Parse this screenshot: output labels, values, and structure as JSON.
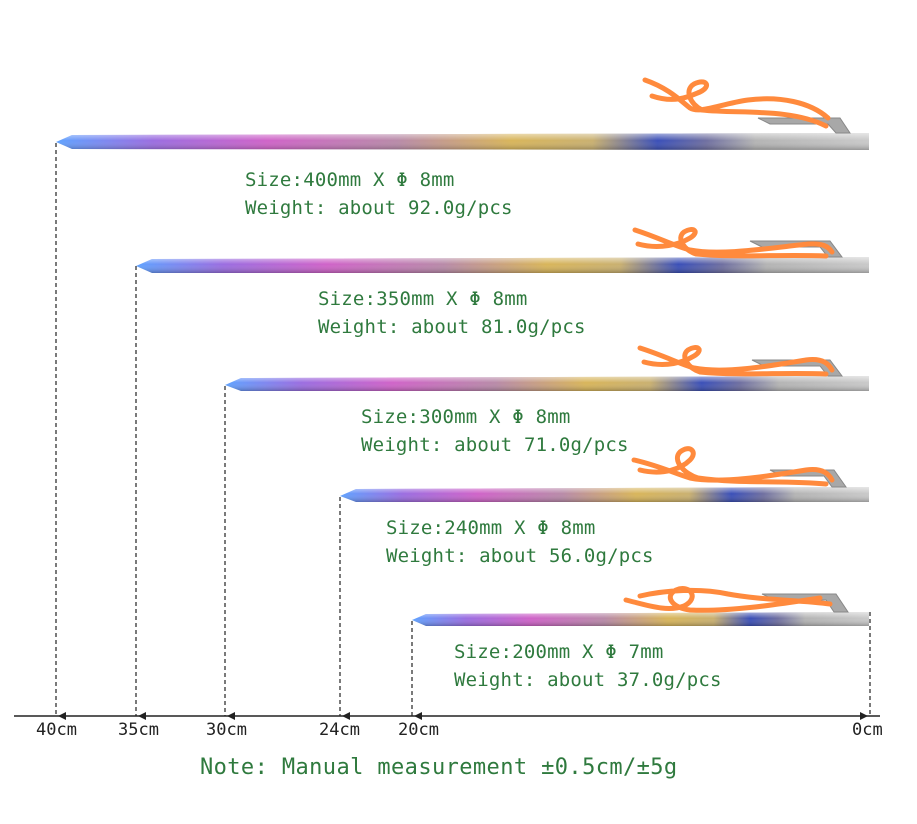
{
  "stakes": [
    {
      "size": "Size:400mm X Φ 8mm",
      "weight": "Weight: about 92.0g/pcs",
      "length_cm": 40
    },
    {
      "size": "Size:350mm X Φ 8mm",
      "weight": "Weight: about 81.0g/pcs",
      "length_cm": 35
    },
    {
      "size": "Size:300mm X Φ 8mm",
      "weight": "Weight: about 71.0g/pcs",
      "length_cm": 30
    },
    {
      "size": "Size:240mm X Φ 8mm",
      "weight": "Weight: about 56.0g/pcs",
      "length_cm": 24
    },
    {
      "size": "Size:200mm X Φ 7mm",
      "weight": "Weight: about 37.0g/pcs",
      "length_cm": 20
    }
  ],
  "scale_ticks": [
    "40cm",
    "35cm",
    "30cm",
    "24cm",
    "20cm",
    "0cm"
  ],
  "note": "Note: Manual measurement ±0.5cm/±5g",
  "colors": {
    "text_green": "#2f7a3e",
    "cord": "#ff8a3d",
    "metal": "#b9b9b9"
  },
  "icons": [
    "titanium-stake-icon",
    "orange-cord-icon"
  ]
}
